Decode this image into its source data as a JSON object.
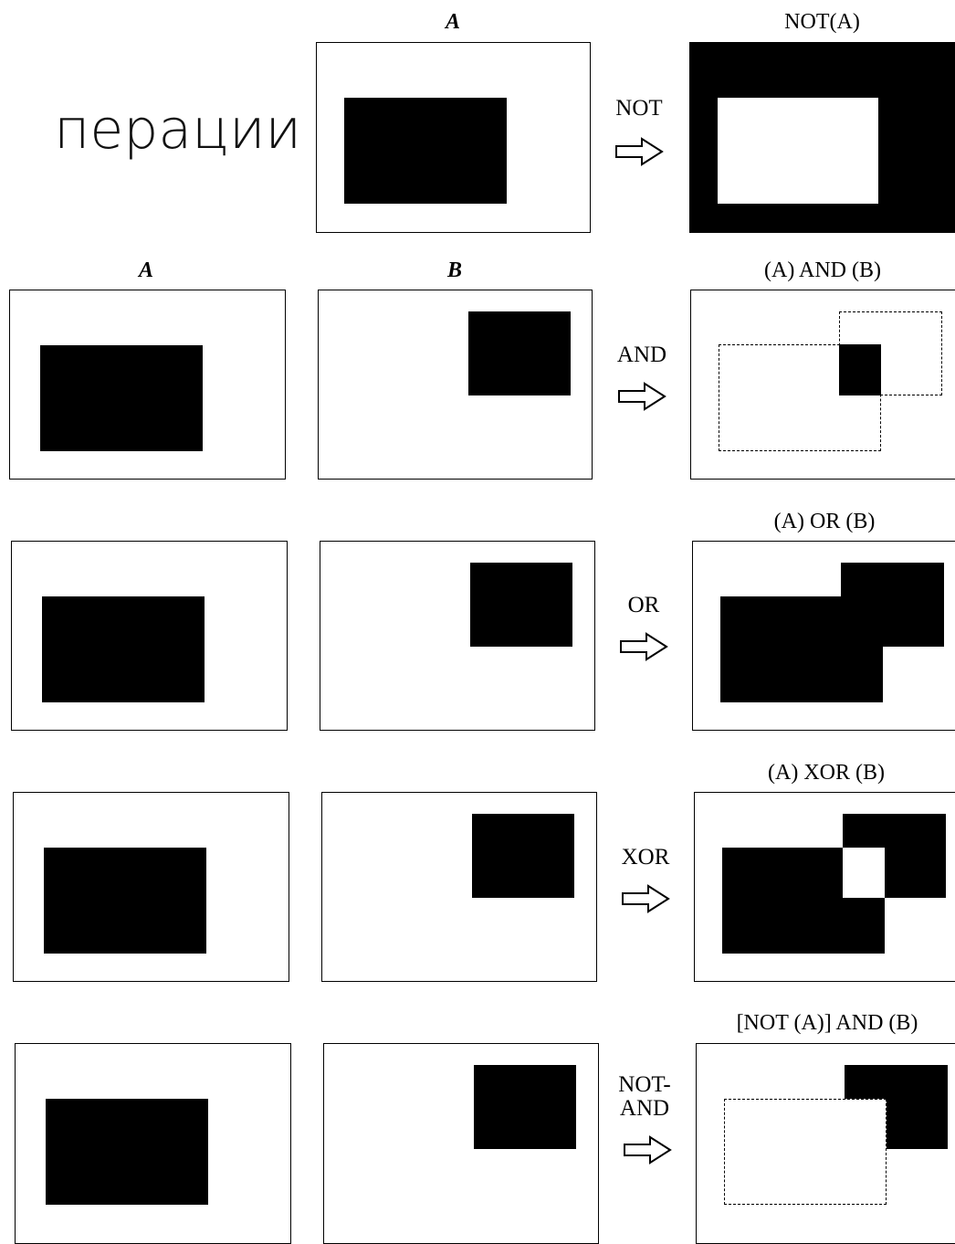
{
  "title": "перации",
  "captions": {
    "a": "A",
    "b": "B",
    "not_a": "NOT(A)",
    "and": "(A) AND (B)",
    "or": "(A) OR (B)",
    "xor": "(A) XOR (B)",
    "not_and": "[NOT (A)] AND (B)"
  },
  "operators": {
    "not": "NOT",
    "and": "AND",
    "or": "OR",
    "xor": "XOR",
    "not_and": "NOT-\nAND"
  }
}
